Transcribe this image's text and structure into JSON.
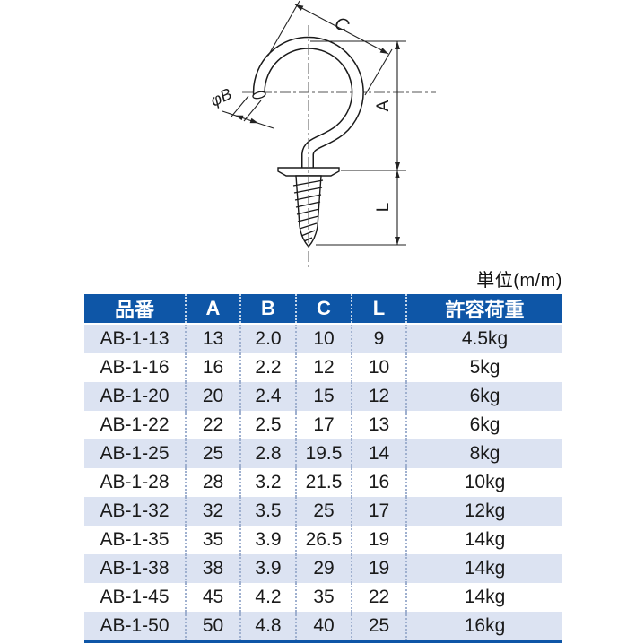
{
  "unit_label": "単位(m/m)",
  "diagram": {
    "dim_c": "C",
    "dim_a": "A",
    "dim_l": "L",
    "dim_b": "φB"
  },
  "table": {
    "headers": [
      "品番",
      "A",
      "B",
      "C",
      "L",
      "許容荷重"
    ],
    "rows": [
      [
        "AB-1-13",
        "13",
        "2.0",
        "10",
        "9",
        "4.5kg"
      ],
      [
        "AB-1-16",
        "16",
        "2.2",
        "12",
        "10",
        "5kg"
      ],
      [
        "AB-1-20",
        "20",
        "2.4",
        "15",
        "12",
        "6kg"
      ],
      [
        "AB-1-22",
        "22",
        "2.5",
        "17",
        "13",
        "6kg"
      ],
      [
        "AB-1-25",
        "25",
        "2.8",
        "19.5",
        "14",
        "8kg"
      ],
      [
        "AB-1-28",
        "28",
        "3.2",
        "21.5",
        "16",
        "10kg"
      ],
      [
        "AB-1-32",
        "32",
        "3.5",
        "25",
        "17",
        "12kg"
      ],
      [
        "AB-1-35",
        "35",
        "3.9",
        "26.5",
        "19",
        "14kg"
      ],
      [
        "AB-1-38",
        "38",
        "3.9",
        "29",
        "19",
        "14kg"
      ],
      [
        "AB-1-45",
        "45",
        "4.2",
        "35",
        "22",
        "14kg"
      ],
      [
        "AB-1-50",
        "50",
        "4.8",
        "40",
        "25",
        "16kg"
      ]
    ]
  },
  "colors": {
    "header_bg": "#0e56a7",
    "header_text": "#ffffff",
    "row_alt_bg": "#dce3f2",
    "row_bg": "#ffffff",
    "body_text": "#1a1a1a",
    "divider_dots": "#9fb0cf"
  }
}
